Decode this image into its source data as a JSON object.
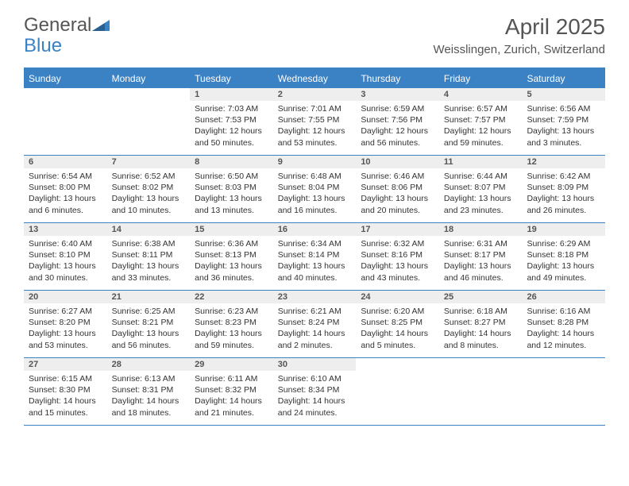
{
  "logo": {
    "part1": "General",
    "part2": "Blue"
  },
  "title": "April 2025",
  "location": "Weisslingen, Zurich, Switzerland",
  "colors": {
    "accent": "#3b82c4",
    "header_text": "#555555",
    "cell_bar_bg": "#eeeeee",
    "body_text": "#333333"
  },
  "day_headers": [
    "Sunday",
    "Monday",
    "Tuesday",
    "Wednesday",
    "Thursday",
    "Friday",
    "Saturday"
  ],
  "weeks": [
    [
      {
        "empty": true
      },
      {
        "empty": true
      },
      {
        "num": "1",
        "sunrise": "7:03 AM",
        "sunset": "7:53 PM",
        "daylight": "12 hours and 50 minutes."
      },
      {
        "num": "2",
        "sunrise": "7:01 AM",
        "sunset": "7:55 PM",
        "daylight": "12 hours and 53 minutes."
      },
      {
        "num": "3",
        "sunrise": "6:59 AM",
        "sunset": "7:56 PM",
        "daylight": "12 hours and 56 minutes."
      },
      {
        "num": "4",
        "sunrise": "6:57 AM",
        "sunset": "7:57 PM",
        "daylight": "12 hours and 59 minutes."
      },
      {
        "num": "5",
        "sunrise": "6:56 AM",
        "sunset": "7:59 PM",
        "daylight": "13 hours and 3 minutes."
      }
    ],
    [
      {
        "num": "6",
        "sunrise": "6:54 AM",
        "sunset": "8:00 PM",
        "daylight": "13 hours and 6 minutes."
      },
      {
        "num": "7",
        "sunrise": "6:52 AM",
        "sunset": "8:02 PM",
        "daylight": "13 hours and 10 minutes."
      },
      {
        "num": "8",
        "sunrise": "6:50 AM",
        "sunset": "8:03 PM",
        "daylight": "13 hours and 13 minutes."
      },
      {
        "num": "9",
        "sunrise": "6:48 AM",
        "sunset": "8:04 PM",
        "daylight": "13 hours and 16 minutes."
      },
      {
        "num": "10",
        "sunrise": "6:46 AM",
        "sunset": "8:06 PM",
        "daylight": "13 hours and 20 minutes."
      },
      {
        "num": "11",
        "sunrise": "6:44 AM",
        "sunset": "8:07 PM",
        "daylight": "13 hours and 23 minutes."
      },
      {
        "num": "12",
        "sunrise": "6:42 AM",
        "sunset": "8:09 PM",
        "daylight": "13 hours and 26 minutes."
      }
    ],
    [
      {
        "num": "13",
        "sunrise": "6:40 AM",
        "sunset": "8:10 PM",
        "daylight": "13 hours and 30 minutes."
      },
      {
        "num": "14",
        "sunrise": "6:38 AM",
        "sunset": "8:11 PM",
        "daylight": "13 hours and 33 minutes."
      },
      {
        "num": "15",
        "sunrise": "6:36 AM",
        "sunset": "8:13 PM",
        "daylight": "13 hours and 36 minutes."
      },
      {
        "num": "16",
        "sunrise": "6:34 AM",
        "sunset": "8:14 PM",
        "daylight": "13 hours and 40 minutes."
      },
      {
        "num": "17",
        "sunrise": "6:32 AM",
        "sunset": "8:16 PM",
        "daylight": "13 hours and 43 minutes."
      },
      {
        "num": "18",
        "sunrise": "6:31 AM",
        "sunset": "8:17 PM",
        "daylight": "13 hours and 46 minutes."
      },
      {
        "num": "19",
        "sunrise": "6:29 AM",
        "sunset": "8:18 PM",
        "daylight": "13 hours and 49 minutes."
      }
    ],
    [
      {
        "num": "20",
        "sunrise": "6:27 AM",
        "sunset": "8:20 PM",
        "daylight": "13 hours and 53 minutes."
      },
      {
        "num": "21",
        "sunrise": "6:25 AM",
        "sunset": "8:21 PM",
        "daylight": "13 hours and 56 minutes."
      },
      {
        "num": "22",
        "sunrise": "6:23 AM",
        "sunset": "8:23 PM",
        "daylight": "13 hours and 59 minutes."
      },
      {
        "num": "23",
        "sunrise": "6:21 AM",
        "sunset": "8:24 PM",
        "daylight": "14 hours and 2 minutes."
      },
      {
        "num": "24",
        "sunrise": "6:20 AM",
        "sunset": "8:25 PM",
        "daylight": "14 hours and 5 minutes."
      },
      {
        "num": "25",
        "sunrise": "6:18 AM",
        "sunset": "8:27 PM",
        "daylight": "14 hours and 8 minutes."
      },
      {
        "num": "26",
        "sunrise": "6:16 AM",
        "sunset": "8:28 PM",
        "daylight": "14 hours and 12 minutes."
      }
    ],
    [
      {
        "num": "27",
        "sunrise": "6:15 AM",
        "sunset": "8:30 PM",
        "daylight": "14 hours and 15 minutes."
      },
      {
        "num": "28",
        "sunrise": "6:13 AM",
        "sunset": "8:31 PM",
        "daylight": "14 hours and 18 minutes."
      },
      {
        "num": "29",
        "sunrise": "6:11 AM",
        "sunset": "8:32 PM",
        "daylight": "14 hours and 21 minutes."
      },
      {
        "num": "30",
        "sunrise": "6:10 AM",
        "sunset": "8:34 PM",
        "daylight": "14 hours and 24 minutes."
      },
      {
        "empty": true
      },
      {
        "empty": true
      },
      {
        "empty": true
      }
    ]
  ]
}
